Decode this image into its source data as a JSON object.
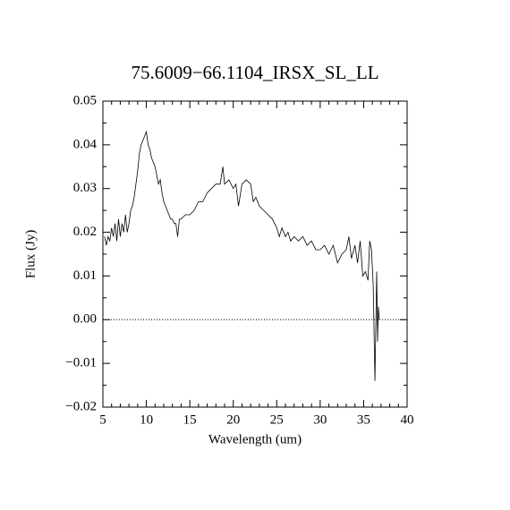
{
  "chart_data": {
    "type": "line",
    "title": "75.6009−66.1104_IRSX_SL_LL",
    "x_label": "Wavelength (um)",
    "y_label": "Flux (Jy)",
    "color": "#000000",
    "xlim": [
      5,
      40
    ],
    "ylim": [
      -0.02,
      0.05
    ],
    "xticks": [
      5,
      10,
      15,
      20,
      25,
      30,
      35,
      40
    ],
    "yticks": [
      {
        "value": -0.02,
        "label": "−0.02"
      },
      {
        "value": -0.01,
        "label": "−0.01"
      },
      {
        "value": 0,
        "label": "0.00"
      },
      {
        "value": 0.01,
        "label": "0.01"
      },
      {
        "value": 0.02,
        "label": "0.02"
      },
      {
        "value": 0.03,
        "label": "0.03"
      },
      {
        "value": 0.04,
        "label": "0.04"
      },
      {
        "value": 0.05,
        "label": "0.05"
      }
    ],
    "hline": 0,
    "x": [
      5.2,
      5.4,
      5.6,
      5.8,
      6.0,
      6.2,
      6.4,
      6.6,
      6.8,
      7.0,
      7.2,
      7.4,
      7.6,
      7.8,
      8.0,
      8.2,
      8.4,
      8.6,
      8.8,
      9.0,
      9.2,
      9.4,
      9.6,
      9.8,
      10.0,
      10.2,
      10.4,
      10.6,
      10.8,
      11.0,
      11.2,
      11.4,
      11.6,
      11.8,
      12.0,
      12.2,
      12.4,
      12.6,
      12.8,
      13.0,
      13.2,
      13.4,
      13.6,
      13.8,
      14.0,
      14.5,
      15.0,
      15.5,
      16.0,
      16.5,
      17.0,
      17.5,
      18.0,
      18.5,
      18.8,
      19.0,
      19.5,
      20.0,
      20.3,
      20.6,
      21.0,
      21.5,
      22.0,
      22.3,
      22.6,
      23.0,
      23.5,
      24.0,
      24.5,
      25.0,
      25.3,
      25.6,
      26.0,
      26.3,
      26.6,
      27.0,
      27.5,
      28.0,
      28.5,
      29.0,
      29.5,
      30.0,
      30.5,
      31.0,
      31.5,
      32.0,
      32.5,
      33.0,
      33.3,
      33.6,
      34.0,
      34.3,
      34.6,
      34.9,
      35.2,
      35.5,
      35.7,
      35.9,
      36.1,
      36.3,
      36.5,
      36.6,
      36.7,
      36.8
    ],
    "values": [
      0.019,
      0.017,
      0.019,
      0.018,
      0.021,
      0.019,
      0.022,
      0.018,
      0.023,
      0.019,
      0.022,
      0.02,
      0.024,
      0.02,
      0.022,
      0.025,
      0.026,
      0.028,
      0.031,
      0.034,
      0.038,
      0.04,
      0.041,
      0.042,
      0.043,
      0.04,
      0.039,
      0.037,
      0.036,
      0.035,
      0.033,
      0.031,
      0.032,
      0.029,
      0.027,
      0.026,
      0.025,
      0.024,
      0.023,
      0.023,
      0.022,
      0.022,
      0.019,
      0.023,
      0.023,
      0.024,
      0.024,
      0.025,
      0.027,
      0.027,
      0.029,
      0.03,
      0.031,
      0.031,
      0.035,
      0.031,
      0.032,
      0.03,
      0.031,
      0.026,
      0.031,
      0.032,
      0.031,
      0.027,
      0.028,
      0.026,
      0.025,
      0.024,
      0.023,
      0.021,
      0.019,
      0.021,
      0.019,
      0.02,
      0.018,
      0.019,
      0.018,
      0.019,
      0.017,
      0.018,
      0.016,
      0.016,
      0.017,
      0.015,
      0.017,
      0.013,
      0.015,
      0.016,
      0.019,
      0.014,
      0.017,
      0.013,
      0.018,
      0.01,
      0.011,
      0.009,
      0.018,
      0.016,
      0.008,
      -0.014,
      0.011,
      -0.005,
      0.003,
      0.0
    ]
  }
}
